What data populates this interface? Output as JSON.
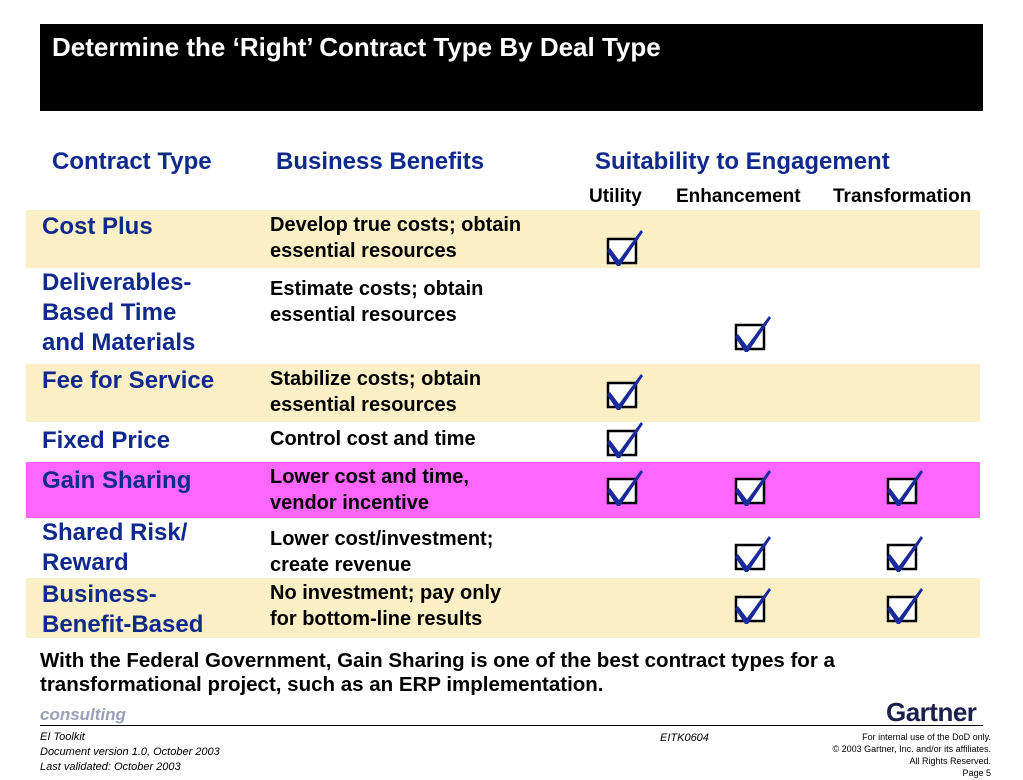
{
  "title": "Determine the ‘Right’ Contract Type By Deal Type",
  "headers": {
    "contract_type": "Contract Type",
    "business_benefits": "Business Benefits",
    "suitability": "Suitability to Engagement",
    "utility": "Utility",
    "enhancement": "Enhancement",
    "transformation": "Transformation"
  },
  "rows": [
    {
      "type_lines": [
        "Cost Plus"
      ],
      "benefit_lines": [
        "Develop true costs; obtain",
        "essential resources"
      ],
      "utility": true,
      "enhancement": false,
      "transformation": false,
      "highlight": "tan"
    },
    {
      "type_lines": [
        "Deliverables-",
        "Based Time",
        "and Materials"
      ],
      "benefit_lines": [
        "Estimate costs; obtain",
        "essential resources"
      ],
      "utility": false,
      "enhancement": true,
      "transformation": false,
      "highlight": "none"
    },
    {
      "type_lines": [
        "Fee for Service"
      ],
      "benefit_lines": [
        "Stabilize costs; obtain",
        "essential resources"
      ],
      "utility": true,
      "enhancement": false,
      "transformation": false,
      "highlight": "tan"
    },
    {
      "type_lines": [
        "Fixed Price"
      ],
      "benefit_lines": [
        "Control cost and time"
      ],
      "utility": true,
      "enhancement": false,
      "transformation": false,
      "highlight": "none"
    },
    {
      "type_lines": [
        "Gain Sharing"
      ],
      "benefit_lines": [
        "Lower cost and time,",
        "vendor incentive"
      ],
      "utility": true,
      "enhancement": true,
      "transformation": true,
      "highlight": "pink"
    },
    {
      "type_lines": [
        "Shared Risk/",
        "Reward"
      ],
      "benefit_lines": [
        "Lower cost/investment;",
        "create revenue"
      ],
      "utility": false,
      "enhancement": true,
      "transformation": true,
      "highlight": "none"
    },
    {
      "type_lines": [
        "Business-",
        "Benefit-Based"
      ],
      "benefit_lines": [
        "No investment; pay only",
        "for bottom-line results"
      ],
      "utility": false,
      "enhancement": true,
      "transformation": true,
      "highlight": "tan"
    }
  ],
  "note": "With the Federal Government, Gain Sharing is one of the best contract types for a transformational project, such as an ERP implementation.",
  "footer": {
    "brand_left": "consulting",
    "brand_right": "Gartner",
    "toolkit": "EI Toolkit",
    "version": "Document version 1.0, October 2003",
    "validated": "Last validated: October 2003",
    "code": "EITK0604",
    "usage": "For internal use of the DoD only.",
    "copyright": "© 2003 Gartner, Inc. and/or its affiliates.",
    "rights": "All Rights Reserved.",
    "page": "Page 5"
  },
  "colors": {
    "heading_blue": "#0f2a8c",
    "row_tan": "#fbefc5",
    "row_pink": "#ff66ff",
    "check_blue": "#1a2a9c"
  },
  "icons": {
    "check": "checkbox-checked-icon"
  }
}
